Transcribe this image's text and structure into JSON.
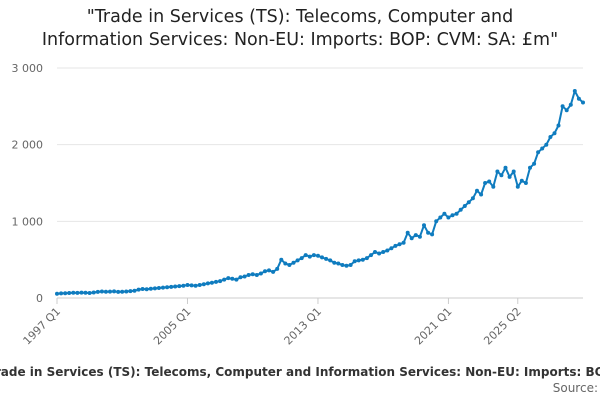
{
  "chart_data": {
    "type": "line",
    "title": "\"Trade in Services (TS): Telecoms, Computer and Information Services: Non-EU: Imports: BOP: CVM: SA: £m\"",
    "title_lines": [
      "\"Trade in Services (TS): Telecoms, Computer and",
      "Information Services: Non-EU: Imports: BOP: CVM: SA: £m\""
    ],
    "series": [
      {
        "name": "Trade in Services (TS): Telecoms, Computer and Information Services: Non-EU: Imports: BOP: CVM: SA: £m",
        "color": "#0f7cbf",
        "start": "1997 Q1",
        "values": [
          55,
          60,
          62,
          65,
          68,
          66,
          70,
          68,
          65,
          72,
          80,
          85,
          82,
          84,
          86,
          80,
          82,
          85,
          90,
          95,
          110,
          118,
          115,
          120,
          125,
          130,
          135,
          140,
          145,
          150,
          155,
          160,
          170,
          165,
          160,
          170,
          180,
          190,
          200,
          210,
          220,
          240,
          260,
          250,
          240,
          270,
          280,
          300,
          310,
          300,
          320,
          350,
          360,
          340,
          380,
          500,
          450,
          430,
          460,
          490,
          520,
          560,
          540,
          560,
          550,
          530,
          510,
          490,
          460,
          450,
          430,
          420,
          430,
          480,
          490,
          500,
          520,
          560,
          600,
          580,
          600,
          620,
          650,
          680,
          700,
          720,
          850,
          780,
          820,
          800,
          950,
          850,
          830,
          1000,
          1050,
          1100,
          1050,
          1080,
          1100,
          1150,
          1200,
          1250,
          1300,
          1400,
          1350,
          1500,
          1520,
          1450,
          1650,
          1600,
          1700,
          1580,
          1650,
          1450,
          1530,
          1500,
          1700,
          1750,
          1900,
          1950,
          2000,
          2100,
          2150,
          2250,
          2500,
          2450,
          2520,
          2700,
          2600,
          2550
        ]
      }
    ],
    "x_tick_labels": [
      "1997 Q1",
      "2005 Q1",
      "2013 Q1",
      "2021 Q1",
      "2025 Q2"
    ],
    "y_tick_labels": [
      "0",
      "1 000",
      "2 000",
      "3 000"
    ],
    "ylim": [
      0,
      3000
    ],
    "xlabel": "",
    "ylabel": "",
    "legend_text": "Trade in Services (TS): Telecoms, Computer and Information Services: Non-EU: Imports: BOP: CVM: SA: £m",
    "source_text": "Source:"
  }
}
